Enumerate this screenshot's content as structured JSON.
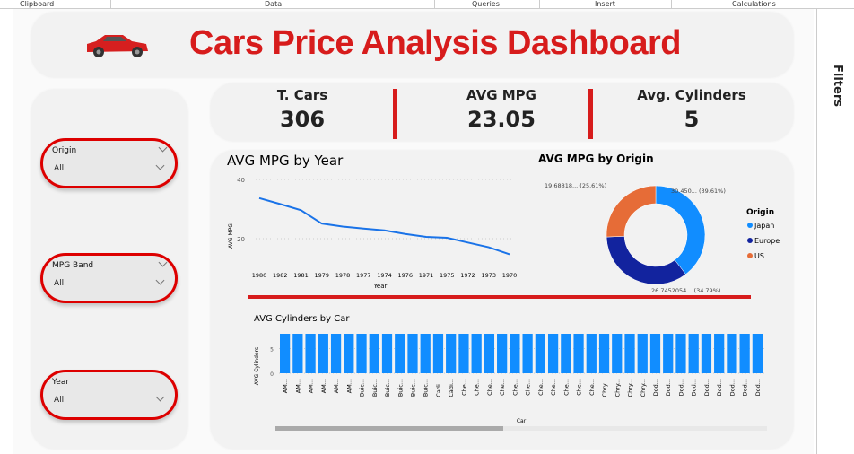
{
  "ribbon": {
    "groups": [
      "Clipboard",
      "Data",
      "Queries",
      "Insert",
      "Calculations"
    ]
  },
  "header": {
    "title": "Cars Price Analysis Dashboard",
    "icon": "red-car-icon"
  },
  "kpis": [
    {
      "label": "T. Cars",
      "value": "306"
    },
    {
      "label": "AVG MPG",
      "value": "23.05"
    },
    {
      "label": "Avg. Cylinders",
      "value": "5"
    }
  ],
  "slicers": [
    {
      "label": "Origin",
      "value": "All"
    },
    {
      "label": "MPG Band",
      "value": "All"
    },
    {
      "label": "Year",
      "value": "All"
    }
  ],
  "filters_pane": {
    "label": "Filters"
  },
  "colors": {
    "accent": "#d71c1c",
    "line": "#1a73e8",
    "bar": "#118dff",
    "japan": "#118dff",
    "europe": "#12239e",
    "us": "#e66c37"
  },
  "chart_data": [
    {
      "type": "line",
      "title": "AVG MPG by Year",
      "xlabel": "Year",
      "ylabel": "AVG MPG",
      "ylim": [
        10,
        40
      ],
      "yticks": [
        20,
        40
      ],
      "grid": true,
      "categories": [
        "1980",
        "1982",
        "1981",
        "1979",
        "1978",
        "1977",
        "1974",
        "1976",
        "1971",
        "1975",
        "1972",
        "1973",
        "1970"
      ],
      "values": [
        33.7,
        31.7,
        29.6,
        25.1,
        24.1,
        23.4,
        22.8,
        21.6,
        20.6,
        20.3,
        18.7,
        17.1,
        14.7
      ]
    },
    {
      "type": "pie",
      "title": "AVG MPG by Origin",
      "legend_title": "Origin",
      "legend": "right",
      "slices": [
        {
          "name": "Japan",
          "value": 30.45,
          "label": "30.450... (39.61%)"
        },
        {
          "name": "Europe",
          "value": 26.745,
          "label": "26.7452054... (34.79%)"
        },
        {
          "name": "US",
          "value": 19.688,
          "label": "19.68818... (25.61%)"
        }
      ]
    },
    {
      "type": "bar",
      "title": "AVG Cylinders by Car",
      "xlabel": "Car",
      "ylabel": "AVG Cylinders",
      "ylim": [
        0,
        8
      ],
      "yticks": [
        0,
        5
      ],
      "grid": true,
      "categories": [
        "AM...",
        "AM...",
        "AM...",
        "AM...",
        "AM...",
        "AM...",
        "Buic...",
        "Buic...",
        "Buic...",
        "Buic...",
        "Buic...",
        "Buic...",
        "Cadi...",
        "Cadi...",
        "Che...",
        "Che...",
        "Che...",
        "Che...",
        "Che...",
        "Che...",
        "Che...",
        "Che...",
        "Che...",
        "Che...",
        "Che...",
        "Chry...",
        "Chry...",
        "Chry...",
        "Chry...",
        "Dod...",
        "Dod...",
        "Dod...",
        "Dod...",
        "Dod...",
        "Dod...",
        "Dod...",
        "Dod...",
        "Dod..."
      ],
      "values": [
        8,
        8,
        8,
        8,
        8,
        8,
        8,
        8,
        8,
        8,
        8,
        8,
        8,
        8,
        8,
        8,
        8,
        8,
        8,
        8,
        8,
        8,
        8,
        8,
        8,
        8,
        8,
        8,
        8,
        8,
        8,
        8,
        8,
        8,
        8,
        8,
        8,
        8
      ]
    }
  ]
}
